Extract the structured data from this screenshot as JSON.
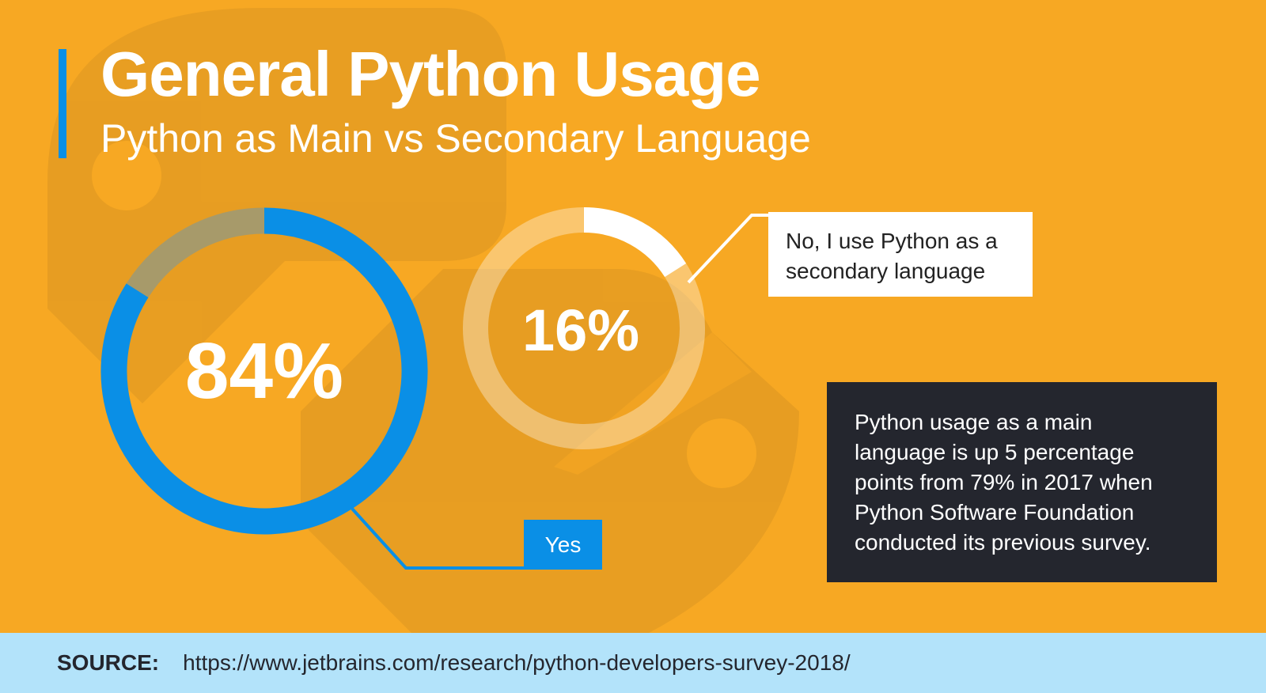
{
  "header": {
    "title": "General Python Usage",
    "subtitle": "Python as Main vs Secondary Language"
  },
  "colors": {
    "background": "#f7a823",
    "accent_blue": "#0a8fe6",
    "note_bg": "#24262e",
    "footer_bg": "#b3e3fa"
  },
  "chart_data": [
    {
      "type": "pie",
      "variant": "donut",
      "categories": [
        "Yes"
      ],
      "values": [
        84
      ],
      "data_label": "84%",
      "legend": "Yes",
      "color": "#0a8fe6"
    },
    {
      "type": "pie",
      "variant": "donut",
      "categories": [
        "No, I use Python as a secondary language"
      ],
      "values": [
        16
      ],
      "data_label": "16%",
      "legend": "No, I use Python as a secondary language",
      "color": "#ffffff"
    }
  ],
  "note": "Python usage as a main language is up 5 percentage points from 79% in 2017 when Python Software Foundation conducted its previous survey.",
  "footer": {
    "label": "SOURCE:",
    "url": "https://www.jetbrains.com/research/python-developers-survey-2018/"
  }
}
